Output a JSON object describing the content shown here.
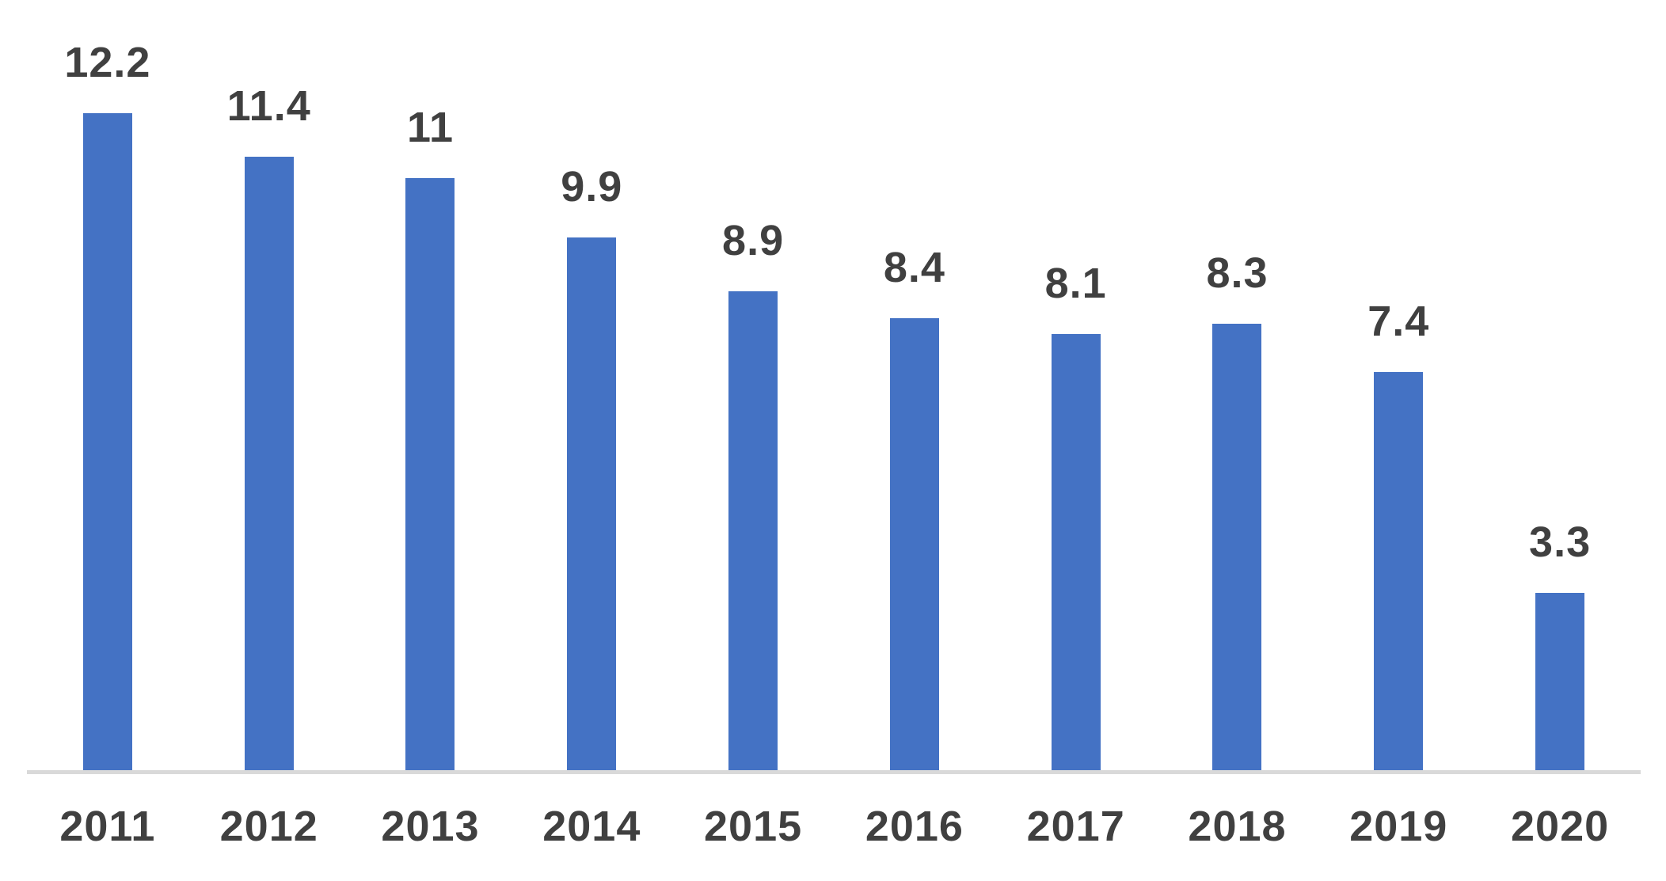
{
  "chart_data": {
    "type": "bar",
    "title": "",
    "xlabel": "",
    "ylabel": "",
    "categories": [
      "2011",
      "2012",
      "2013",
      "2014",
      "2015",
      "2016",
      "2017",
      "2018",
      "2019",
      "2020"
    ],
    "values": [
      12.2,
      11.4,
      11,
      9.9,
      8.9,
      8.4,
      8.1,
      8.3,
      7.4,
      3.3
    ],
    "value_labels": [
      "12.2",
      "11.4",
      "11",
      "9.9",
      "8.9",
      "8.4",
      "8.1",
      "8.3",
      "7.4",
      "3.3"
    ],
    "series_count": 1,
    "ylim": [
      0,
      14.3
    ],
    "grid": false,
    "legend_position": "none",
    "data_labels_position": "above-bars",
    "colors": {
      "bar": "#4472C4",
      "label_text": "#404040",
      "axis_line": "#D9D9D9",
      "background": "#FFFFFF"
    }
  }
}
